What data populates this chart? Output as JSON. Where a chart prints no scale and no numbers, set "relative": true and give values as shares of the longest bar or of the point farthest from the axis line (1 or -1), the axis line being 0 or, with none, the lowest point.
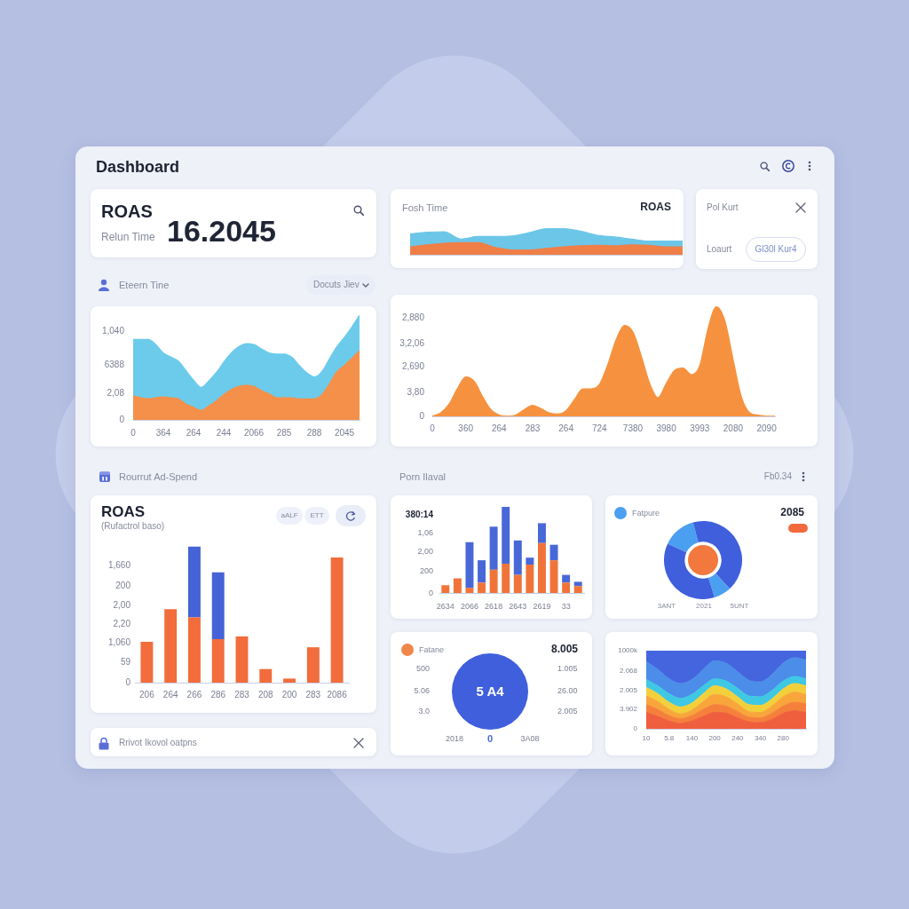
{
  "chart_data": [
    {
      "type": "other",
      "title": "Dashboard"
    },
    {
      "type": "other",
      "title": "ROAS",
      "subtitle": "Relun Time",
      "annotations": [
        "16.2045"
      ]
    },
    {
      "type": "area",
      "title": "Fosh Time",
      "annotations": [
        "ROAS"
      ],
      "relative": true,
      "categories": [
        null,
        null,
        null,
        null,
        null,
        null,
        null,
        null,
        null,
        null,
        null,
        null,
        null,
        null,
        null,
        null,
        null
      ],
      "series": [
        {
          "color": "#6cc6e8",
          "values": [
            0.8,
            0.86,
            0.88,
            0.6,
            0.7,
            0.7,
            0.72,
            0.84,
            1,
            1,
            0.9,
            0.74,
            0.68,
            0.6,
            0.52,
            0.52,
            0.52
          ]
        },
        {
          "color": "#f07e47",
          "values": [
            0.3,
            0.38,
            0.44,
            0.46,
            0.46,
            0.28,
            0.18,
            0.18,
            0.24,
            0.3,
            0.34,
            0.36,
            0.34,
            0.38,
            0.36,
            0.3,
            0.3
          ]
        }
      ]
    },
    {
      "type": "other",
      "title": "Pol Kurt",
      "annotations": [
        "Loaurt",
        "Gl30l Kur4"
      ]
    },
    {
      "type": "area",
      "title": "Eteern Tine",
      "annotations": [
        "Docuts Jiev",
        "1,040",
        "6388",
        "2,08",
        "0"
      ],
      "relative": true,
      "categories": [
        "0",
        null,
        null,
        null,
        "364",
        null,
        null,
        null,
        "264",
        null,
        null,
        null,
        "244",
        null,
        null,
        null,
        "2066",
        null,
        null,
        null,
        "285",
        null,
        null,
        null,
        "288",
        null,
        null,
        null,
        "2045",
        null,
        null
      ],
      "series": [
        {
          "color": "#6ccbeb",
          "values": [
            0.77,
            0.77,
            0.77,
            0.72,
            0.64,
            0.6,
            0.56,
            0.47,
            0.38,
            0.31,
            0.37,
            0.45,
            0.55,
            0.64,
            0.7,
            0.73,
            0.72,
            0.68,
            0.64,
            0.63,
            0.63,
            0.6,
            0.52,
            0.45,
            0.41,
            0.46,
            0.58,
            0.7,
            0.79,
            0.89,
            1
          ]
        },
        {
          "color": "#f5904a",
          "values": [
            0.23,
            0.21,
            0.2,
            0.21,
            0.22,
            0.21,
            0.2,
            0.15,
            0.12,
            0.09,
            0.13,
            0.18,
            0.24,
            0.29,
            0.32,
            0.33,
            0.32,
            0.28,
            0.25,
            0.21,
            0.21,
            0.21,
            0.2,
            0.2,
            0.2,
            0.24,
            0.34,
            0.46,
            0.52,
            0.59,
            0.66
          ]
        }
      ]
    },
    {
      "type": "area",
      "annotations": [
        "2,880",
        "3,2,06",
        "2,690",
        "3,80",
        "0"
      ],
      "relative": true,
      "categories": [
        "0",
        null,
        null,
        null,
        "360",
        null,
        null,
        null,
        "264",
        null,
        null,
        null,
        "283",
        null,
        null,
        null,
        "264",
        null,
        null,
        null,
        "724",
        null,
        null,
        null,
        "7380",
        null,
        null,
        null,
        "3980",
        null,
        null,
        null,
        "3993",
        null,
        null,
        null,
        "2080",
        null,
        null,
        null,
        "2090",
        null
      ],
      "color": "#f6923f",
      "values": [
        0,
        0.03,
        0.11,
        0.25,
        0.36,
        0.32,
        0.18,
        0.06,
        0.01,
        0,
        0.01,
        0.06,
        0.1,
        0.07,
        0.03,
        0.02,
        0.05,
        0.15,
        0.25,
        0.25,
        0.29,
        0.47,
        0.7,
        0.83,
        0.77,
        0.55,
        0.3,
        0.17,
        0.3,
        0.42,
        0.44,
        0.38,
        0.46,
        0.8,
        1,
        0.87,
        0.51,
        0.17,
        0.03,
        0.01,
        0,
        0
      ]
    },
    {
      "type": "bar",
      "title": "ROAS",
      "subtitle": "(Rufactrol baso)",
      "annotations": [
        "Rourrut Ad-Spend",
        "aALF",
        "ETT",
        "1,660",
        "200",
        "2,00",
        "2,20",
        "1,060",
        "59",
        "0"
      ],
      "relative": true,
      "categories": [
        "206",
        "264",
        "266",
        "286",
        "283",
        "208",
        "200",
        "283",
        "2086"
      ],
      "stacked": true,
      "series": [
        {
          "color": "#f26c3c",
          "values": [
            0.3,
            0.54,
            0.48,
            0.32,
            0.34,
            0.1,
            0.03,
            0.26,
            0.92
          ]
        },
        {
          "color": "#4563d6",
          "values": [
            null,
            null,
            0.52,
            0.49,
            null,
            null,
            null,
            null,
            null
          ]
        }
      ]
    },
    {
      "type": "bar",
      "title": "Porn Ilaval",
      "annotations": [
        "380:14",
        "1,06",
        "2,00",
        "200",
        "0"
      ],
      "relative": true,
      "categories": [
        "2634",
        null,
        "2066",
        null,
        "2618",
        null,
        "2643",
        null,
        "2619",
        null,
        "33",
        null
      ],
      "stacked": true,
      "series": [
        {
          "color": "#f0743a",
          "values": [
            0.09,
            0.17,
            0.06,
            0.12,
            0.27,
            0.34,
            0.21,
            0.33,
            0.58,
            0.38,
            0.12,
            0.08
          ]
        },
        {
          "color": "#4868d8",
          "values": [
            null,
            null,
            0.53,
            0.26,
            0.5,
            0.66,
            0.4,
            0.08,
            0.23,
            0.18,
            0.09,
            0.05
          ]
        }
      ]
    },
    {
      "type": "donut",
      "title": "Fb0.34",
      "annotations": [
        "2085",
        "3ANT",
        "2021",
        "5UNT"
      ],
      "categories": [
        "Fatpure",
        null,
        null,
        null
      ],
      "values": [
        13.9,
        42.2,
        7.2,
        36.7
      ],
      "colors": [
        "#4a9ff0",
        "#3f5fdc",
        "#4a9ff0",
        "#3f5fdc"
      ],
      "legend": "top left"
    },
    {
      "type": "pie",
      "annotations": [
        "Fatane",
        "8.005",
        "5 A4",
        "500",
        "5.06",
        "3.0",
        "1.005",
        "26.00",
        "2.005",
        "2018",
        "0",
        "3A08"
      ],
      "categories": [
        null
      ],
      "values": [
        100
      ],
      "colors": [
        "#3f5fdc"
      ]
    },
    {
      "type": "area",
      "annotations": [
        "1000k",
        "2.068",
        "2.005",
        "3.902",
        "0"
      ],
      "relative": true,
      "stacked": true,
      "categories": [
        "10",
        null,
        "5.8",
        null,
        "140",
        null,
        "200",
        null,
        "240",
        null,
        "340",
        null,
        "280",
        null,
        null
      ],
      "series": [
        {
          "color": "#ef5e3d",
          "values": [
            0.21,
            0.16,
            0.1,
            0.07,
            0.1,
            0.16,
            0.21,
            0.2,
            0.14,
            0.09,
            0.08,
            0.12,
            0.2,
            0.23,
            0.21
          ]
        },
        {
          "color": "#f5803c",
          "values": [
            0.1,
            0.09,
            0.07,
            0.06,
            0.07,
            0.09,
            0.1,
            0.09,
            0.08,
            0.06,
            0.06,
            0.08,
            0.09,
            0.11,
            0.11
          ]
        },
        {
          "color": "#f8a63c",
          "values": [
            0.11,
            0.1,
            0.08,
            0.06,
            0.07,
            0.1,
            0.13,
            0.12,
            0.1,
            0.07,
            0.07,
            0.09,
            0.12,
            0.13,
            0.12
          ]
        },
        {
          "color": "#f2d03c",
          "values": [
            0.11,
            0.1,
            0.09,
            0.09,
            0.09,
            0.1,
            0.11,
            0.1,
            0.09,
            0.09,
            0.09,
            0.09,
            0.1,
            0.11,
            0.11
          ]
        },
        {
          "color": "#3fc8e3",
          "values": [
            0.1,
            0.1,
            0.11,
            0.11,
            0.11,
            0.1,
            0.09,
            0.1,
            0.11,
            0.11,
            0.11,
            0.11,
            0.1,
            0.09,
            0.09
          ]
        },
        {
          "color": "#4b8de8",
          "values": [
            0.23,
            0.21,
            0.19,
            0.19,
            0.19,
            0.21,
            0.23,
            0.23,
            0.21,
            0.2,
            0.19,
            0.2,
            0.23,
            0.24,
            0.24
          ]
        },
        {
          "color": "#4565df",
          "values": [
            0.14,
            0.24,
            0.36,
            0.42,
            0.37,
            0.24,
            0.13,
            0.16,
            0.27,
            0.38,
            0.4,
            0.31,
            0.16,
            0.09,
            0.12
          ]
        }
      ]
    },
    {
      "type": "other",
      "title": "Rrivot Ikovol oatpns"
    }
  ]
}
